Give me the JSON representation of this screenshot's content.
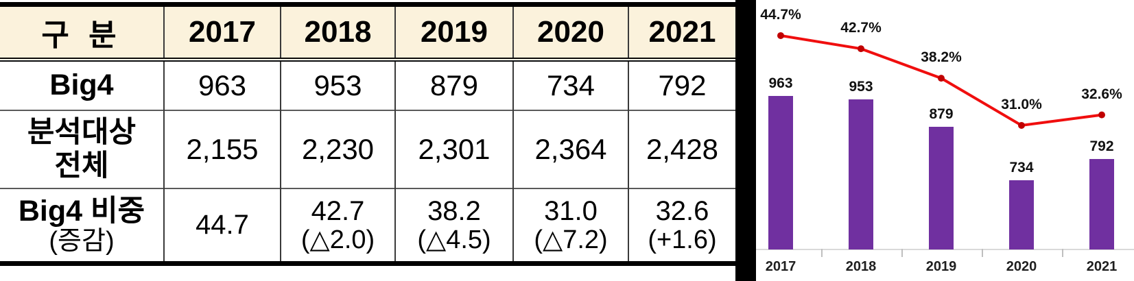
{
  "table": {
    "header": {
      "label": "구 분",
      "years": [
        "2017",
        "2018",
        "2019",
        "2020",
        "2021"
      ]
    },
    "rows": [
      {
        "label": "Big4",
        "values": [
          "963",
          "953",
          "879",
          "734",
          "792"
        ]
      },
      {
        "label": "분석대상",
        "label2": "전체",
        "values": [
          "2,155",
          "2,230",
          "2,301",
          "2,364",
          "2,428"
        ]
      },
      {
        "label": "Big4 비중",
        "label2": "(증감)",
        "values": [
          "44.7",
          "42.7",
          "38.2",
          "31.0",
          "32.6"
        ],
        "sub_values": [
          "",
          "(△2.0)",
          "(△4.5)",
          "(△7.2)",
          "(+1.6)"
        ]
      }
    ]
  },
  "chart_data": {
    "type": "bar+line",
    "categories": [
      "2017",
      "2018",
      "2019",
      "2020",
      "2021"
    ],
    "series": [
      {
        "name": "Big4",
        "type": "bar",
        "values": [
          963,
          953,
          879,
          734,
          792
        ],
        "color": "#7030A0",
        "labels": [
          "963",
          "953",
          "879",
          "734",
          "792"
        ]
      },
      {
        "name": "Big4 비중",
        "type": "line",
        "values": [
          44.7,
          42.7,
          38.2,
          31.0,
          32.6
        ],
        "color": "#F00E0E",
        "marker_color": "#C00000",
        "labels": [
          "44.7%",
          "42.7%",
          "38.2%",
          "31.0%",
          "32.6%"
        ]
      }
    ],
    "title": "",
    "xlabel": "",
    "ylabel": "",
    "legend": false,
    "grid": false,
    "bar_ymin_implied": 550
  }
}
